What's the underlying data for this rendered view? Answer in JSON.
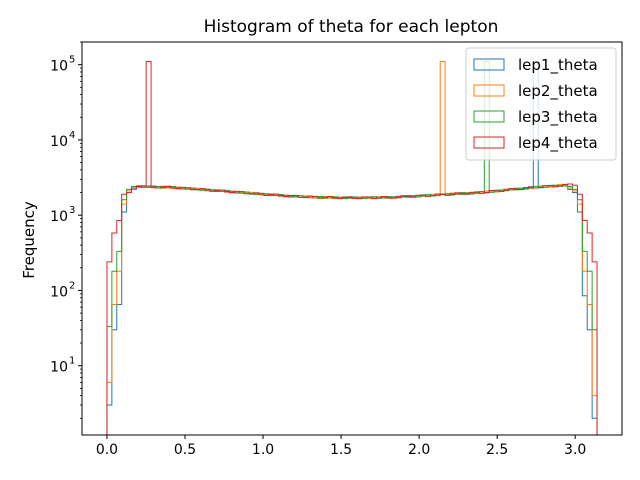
{
  "chart_data": {
    "type": "histogram",
    "title": "Histogram of theta for each lepton",
    "xlabel": "",
    "ylabel": "Frequency",
    "yscale": "log",
    "xlim": [
      -0.16,
      3.3
    ],
    "ylim": [
      1.2,
      200000
    ],
    "xticks": [
      0.0,
      0.5,
      1.0,
      1.5,
      2.0,
      2.5,
      3.0
    ],
    "xtick_labels": [
      "0.0",
      "0.5",
      "1.0",
      "1.5",
      "2.0",
      "2.5",
      "3.0"
    ],
    "yticks": [
      10,
      100,
      1000,
      10000,
      100000
    ],
    "grid": false,
    "legend_position": "top-right",
    "colors": {
      "lep1_theta": "#1f77b4",
      "lep2_theta": "#ff7f0e",
      "lep3_theta": "#2ca02c",
      "lep4_theta": "#d62728"
    },
    "bins": {
      "start": 0.0,
      "width": 0.0314,
      "count": 100
    },
    "series": [
      {
        "name": "lep1_theta",
        "edge_counts": [
          3,
          30,
          65,
          1100,
          2000,
          2200
        ],
        "spike_bin": 87,
        "spike_value": 110000,
        "right_tail": [
          2200,
          2000,
          1100,
          85,
          30,
          2
        ]
      },
      {
        "name": "lep2_theta",
        "edge_counts": [
          6,
          65,
          180,
          1400,
          2100,
          2300
        ],
        "spike_bin": 68,
        "spike_value": 110000,
        "right_tail": [
          2300,
          2100,
          1400,
          180,
          65,
          4
        ]
      },
      {
        "name": "lep3_theta",
        "edge_counts": [
          33,
          180,
          330,
          1600,
          2200,
          2400
        ],
        "spike_bin": 77,
        "spike_value": 110000,
        "right_tail": [
          2400,
          2200,
          1600,
          330,
          180,
          30
        ]
      },
      {
        "name": "lep4_theta",
        "edge_counts": [
          240,
          580,
          850,
          1900,
          2000,
          2300,
          2400,
          2450
        ],
        "spike_bin": 8,
        "spike_value": 110000,
        "right_tail": [
          2600,
          2500,
          1900,
          850,
          580,
          240
        ]
      }
    ],
    "plateau_profile": {
      "x": [
        0.2,
        0.4,
        0.6,
        0.8,
        1.0,
        1.2,
        1.4,
        1.6,
        1.8,
        2.0,
        2.2,
        2.4,
        2.6,
        2.8,
        2.95
      ],
      "y": [
        2400,
        2350,
        2200,
        2050,
        1900,
        1780,
        1720,
        1700,
        1720,
        1800,
        1900,
        2000,
        2200,
        2400,
        2500
      ]
    }
  }
}
